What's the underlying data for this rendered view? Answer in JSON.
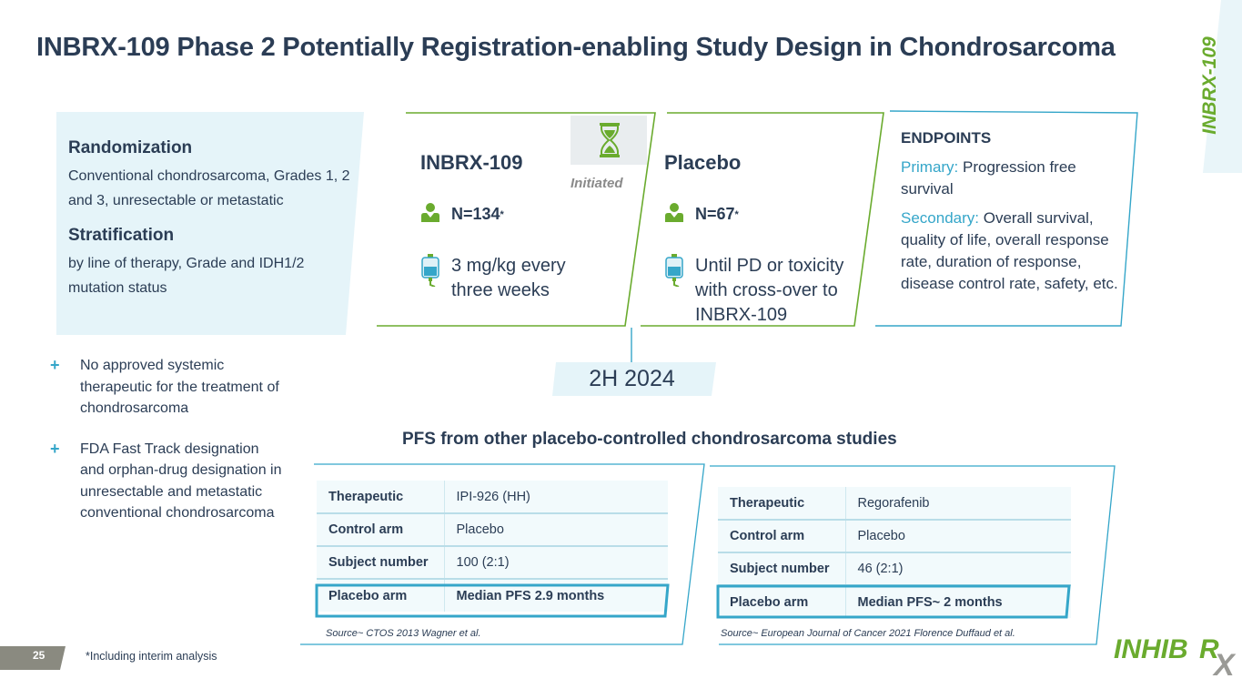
{
  "title": "INBRX-109 Phase 2 Potentially Registration-enabling Study Design in Chondrosarcoma",
  "side_label": "INBRX-109",
  "randomization": {
    "heading": "Randomization",
    "text": "Conventional chondrosarcoma, Grades 1, 2 and 3, unresectable or metastatic",
    "strat_heading": "Stratification",
    "strat_text": "by line of therapy, Grade and IDH1/2 mutation status"
  },
  "bullets": [
    "No approved systemic therapeutic for the treatment of chondrosarcoma",
    "FDA Fast Track designation and orphan-drug designation in unresectable and metastatic conventional chondrosarcoma"
  ],
  "arm_treatment": {
    "name": "INBRX-109",
    "n": "N=134",
    "n_mark": "*",
    "dose": "3 mg/kg every three weeks"
  },
  "status_label": "Initiated",
  "arm_placebo": {
    "name": "Placebo",
    "n": "N=67 ",
    "n_mark": "*",
    "dose": "Until PD or toxicity with cross-over to INBRX-109"
  },
  "endpoints": {
    "heading": "ENDPOINTS",
    "primary_label": "Primary:",
    "primary_text": " Progression free survival",
    "secondary_label": "Secondary:",
    "secondary_text": " Overall survival, quality of life, overall response rate, duration of response, disease control rate, safety, etc."
  },
  "readout_date": "2H 2024",
  "pfs_title": "PFS from other placebo-controlled chondrosarcoma studies",
  "studies": [
    {
      "rows": [
        {
          "key": "Therapeutic",
          "value": "IPI-926 (HH)"
        },
        {
          "key": "Control arm",
          "value": "Placebo"
        },
        {
          "key": "Subject number",
          "value": "100 (2:1)"
        },
        {
          "key": "Placebo arm",
          "value": "Median PFS 2.9 months"
        }
      ],
      "source": "Source~ CTOS 2013 Wagner et al."
    },
    {
      "rows": [
        {
          "key": "Therapeutic",
          "value": "Regorafenib"
        },
        {
          "key": "Control arm",
          "value": "Placebo"
        },
        {
          "key": "Subject number",
          "value": "46 (2:1)"
        },
        {
          "key": "Placebo arm",
          "value": "Median PFS~ 2 months"
        }
      ],
      "source": "Source~ European Journal of Cancer 2021 Florence Duffaud et al."
    }
  ],
  "page_number": "25",
  "footnote": "*Including interim analysis",
  "logo": {
    "main": "INHIB",
    "r": "R",
    "x": "X"
  },
  "colors": {
    "navy": "#2b3d55",
    "cyan": "#35a6c9",
    "green": "#6aab2e",
    "light_cyan": "#e5f4f9"
  }
}
